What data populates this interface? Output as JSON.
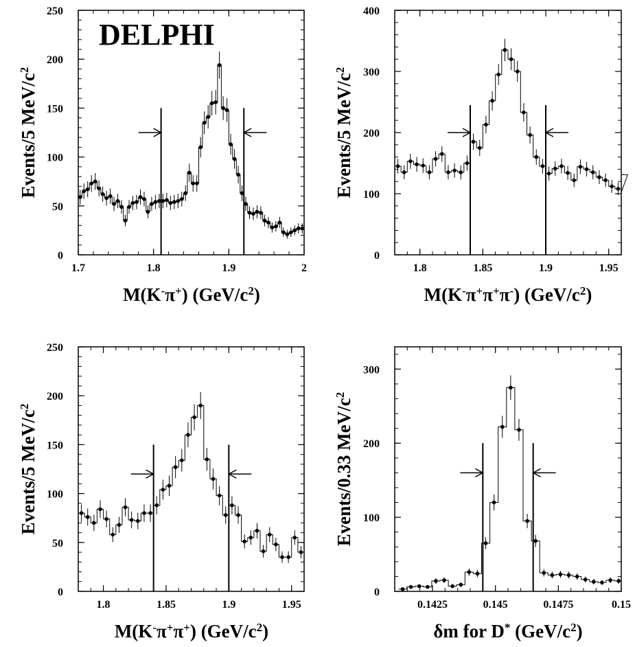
{
  "figure": {
    "experiment_label": "DELPHI"
  },
  "chart_data": [
    {
      "type": "histogram",
      "xlabel": {
        "main": "M(K",
        "sup1": "-",
        "mid1": "π",
        "sup2": "+",
        "tail": ") (GeV/c",
        "sup3": "2",
        "end": ")"
      },
      "ylabel": {
        "main": "Events/5 MeV/c",
        "sup": "2"
      },
      "xlim": [
        1.7,
        2.0
      ],
      "ylim": [
        0,
        250
      ],
      "xticks": [
        1.7,
        1.8,
        1.9,
        2.0
      ],
      "xtick_labels": [
        "1.7",
        "1.8",
        "1.9",
        "2"
      ],
      "yticks": [
        0,
        50,
        100,
        150,
        200,
        250
      ],
      "ytick_labels": [
        "0",
        "50",
        "100",
        "150",
        "200",
        "250"
      ],
      "bin_width": 0.005,
      "x_start": 1.7,
      "values": [
        59,
        65,
        67,
        73,
        75,
        68,
        62,
        58,
        60,
        52,
        55,
        49,
        35,
        49,
        53,
        54,
        59,
        57,
        44,
        52,
        54,
        55,
        55,
        56,
        53,
        54,
        55,
        57,
        63,
        84,
        73,
        73,
        110,
        135,
        141,
        155,
        156,
        194,
        150,
        148,
        113,
        98,
        82,
        63,
        52,
        43,
        42,
        44,
        43,
        35,
        33,
        28,
        29,
        33,
        23,
        21,
        23,
        25,
        27,
        27
      ],
      "cut_lines": [
        1.81,
        1.92
      ],
      "cut_line_top": 150,
      "arrow_y": 125
    },
    {
      "type": "histogram",
      "xlabel": {
        "main": "M(K",
        "sup1": "-",
        "mid1": "π",
        "sup2": "+",
        "mid2": "π",
        "sup3": "+",
        "mid3": "π",
        "sup4": "-",
        "tail": ") (GeV/c",
        "sup5": "2",
        "end": ")"
      },
      "ylabel": {
        "main": "Events/5 MeV/c",
        "sup": "2"
      },
      "xlim": [
        1.78,
        1.96
      ],
      "ylim": [
        0,
        400
      ],
      "xticks": [
        1.8,
        1.85,
        1.9,
        1.95
      ],
      "xtick_labels": [
        "1.8",
        "1.85",
        "1.9",
        "1.95"
      ],
      "yticks": [
        0,
        100,
        200,
        300,
        400
      ],
      "ytick_labels": [
        "0",
        "100",
        "200",
        "300",
        "400"
      ],
      "bin_width": 0.005,
      "x_start": 1.78,
      "values": [
        145,
        135,
        153,
        148,
        146,
        135,
        157,
        165,
        135,
        138,
        135,
        150,
        185,
        175,
        213,
        252,
        295,
        335,
        320,
        300,
        233,
        196,
        160,
        145,
        133,
        141,
        145,
        134,
        122,
        144,
        140,
        135,
        127,
        122,
        112,
        108,
        102,
        131
      ],
      "cut_lines": [
        1.84,
        1.9
      ],
      "cut_line_top": 245,
      "arrow_y": 200
    },
    {
      "type": "histogram",
      "xlabel": {
        "main": "M(K",
        "sup1": "-",
        "mid1": "π",
        "sup2": "+",
        "mid2": "π",
        "sup3": "+",
        "tail": ") (GeV/c",
        "sup4": "2",
        "end": ")"
      },
      "ylabel": {
        "main": "Events/5 MeV/c",
        "sup": "2"
      },
      "xlim": [
        1.78,
        1.96
      ],
      "ylim": [
        0,
        250
      ],
      "xticks": [
        1.8,
        1.85,
        1.9,
        1.95
      ],
      "xtick_labels": [
        "1.8",
        "1.85",
        "1.9",
        "1.95"
      ],
      "yticks": [
        0,
        50,
        100,
        150,
        200,
        250
      ],
      "ytick_labels": [
        "0",
        "50",
        "100",
        "150",
        "200",
        "250"
      ],
      "bin_width": 0.005,
      "x_start": 1.78,
      "values": [
        80,
        76,
        70,
        84,
        74,
        58,
        68,
        86,
        73,
        72,
        80,
        80,
        88,
        104,
        108,
        127,
        134,
        160,
        178,
        190,
        135,
        115,
        98,
        78,
        88,
        78,
        51,
        55,
        62,
        41,
        58,
        48,
        35,
        35,
        55,
        40
      ],
      "cut_lines": [
        1.84,
        1.9
      ],
      "cut_line_top": 150,
      "arrow_y": 120
    },
    {
      "type": "histogram",
      "xlabel": {
        "main": "δm for D",
        "sup1": "*",
        "tail": " (GeV/c",
        "sup2": "2",
        "end": ")"
      },
      "ylabel": {
        "main": "Events/0.33 MeV/c",
        "sup": "2"
      },
      "xlim": [
        0.141,
        0.15
      ],
      "ylim": [
        0,
        330
      ],
      "xticks": [
        0.1425,
        0.145,
        0.1475,
        0.15
      ],
      "xtick_labels": [
        "0.1425",
        "0.145",
        "0.1475",
        "0.15"
      ],
      "yticks": [
        0,
        100,
        200,
        300
      ],
      "ytick_labels": [
        "0",
        "100",
        "200",
        "300"
      ],
      "bin_width": 0.00033,
      "x_start": 0.14115,
      "values": [
        3,
        6,
        7,
        6,
        14,
        15,
        7,
        9,
        26,
        24,
        65,
        120,
        222,
        275,
        218,
        95,
        68,
        25,
        22,
        23,
        22,
        20,
        16,
        13,
        12,
        15,
        14
      ],
      "cut_lines": [
        0.1445,
        0.1465
      ],
      "cut_line_top": 200,
      "arrow_y": 160
    }
  ]
}
